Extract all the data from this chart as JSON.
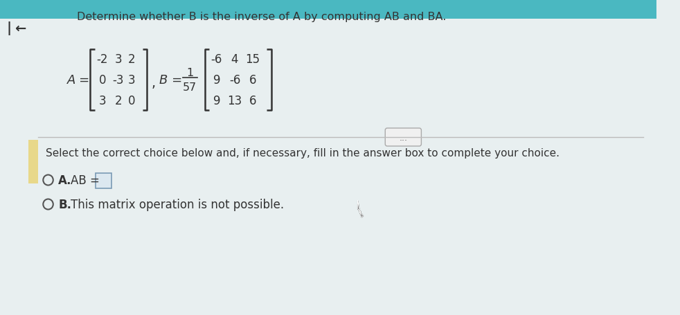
{
  "title": "Determine whether B is the inverse of A by computing AB and BA.",
  "bg_color": "#e8eff0",
  "bg_stripe_color": "#dde8ea",
  "top_bar_color": "#4ab8c1",
  "left_bar_color": "#e8d88a",
  "matrix_A": [
    [
      "-2",
      "3",
      "2"
    ],
    [
      "0",
      "-3",
      "3"
    ],
    [
      "3",
      "2",
      "0"
    ]
  ],
  "matrix_B": [
    [
      "-6",
      "4",
      "15"
    ],
    [
      "9",
      "-6",
      "6"
    ],
    [
      "9",
      "13",
      "6"
    ]
  ],
  "scalar_num": "1",
  "scalar_den": "57",
  "select_text": "Select the correct choice below and, if necessary, fill in the answer box to complete your choice.",
  "back_arrow": "←",
  "dots": "...",
  "font_color": "#2a2a2a",
  "dark_color": "#333333",
  "circle_color": "#555555",
  "divider_color": "#bbbbbb",
  "dots_box_color": "#cccccc",
  "answer_box_border": "#7a9ab5",
  "answer_box_fill": "#dce8f0",
  "cursor_color": "#444444"
}
